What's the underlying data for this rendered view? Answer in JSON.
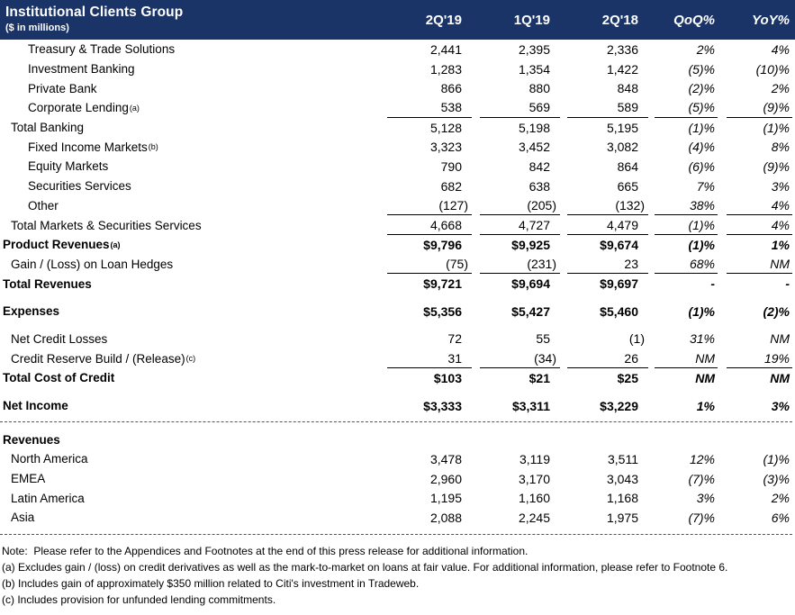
{
  "header": {
    "title": "Institutional Clients Group",
    "subtitle": "($ in millions)",
    "columns": [
      "2Q'19",
      "1Q'19",
      "2Q'18",
      "QoQ%",
      "YoY%"
    ],
    "bg_color": "#1b3467",
    "text_color": "#ffffff"
  },
  "table": {
    "rows": [
      {
        "label": "Treasury & Trade Solutions",
        "indent": 2,
        "values": [
          "2,441",
          "2,395",
          "2,336",
          "2%",
          "4%"
        ]
      },
      {
        "label": "Investment Banking",
        "indent": 2,
        "values": [
          "1,283",
          "1,354",
          "1,422",
          "(5)%",
          "(10)%"
        ]
      },
      {
        "label": "Private Bank",
        "indent": 2,
        "values": [
          "866",
          "880",
          "848",
          "(2)%",
          "2%"
        ]
      },
      {
        "label": "Corporate Lending",
        "sup": "(a)",
        "indent": 2,
        "underline": true,
        "values": [
          "538",
          "569",
          "589",
          "(5)%",
          "(9)%"
        ]
      },
      {
        "label": "Total Banking",
        "indent": 1,
        "values": [
          "5,128",
          "5,198",
          "5,195",
          "(1)%",
          "(1)%"
        ]
      },
      {
        "label": "Fixed Income Markets",
        "sup": "(b)",
        "indent": 2,
        "values": [
          "3,323",
          "3,452",
          "3,082",
          "(4)%",
          "8%"
        ]
      },
      {
        "label": "Equity Markets",
        "indent": 2,
        "values": [
          "790",
          "842",
          "864",
          "(6)%",
          "(9)%"
        ]
      },
      {
        "label": "Securities Services",
        "indent": 2,
        "values": [
          "682",
          "638",
          "665",
          "7%",
          "3%"
        ]
      },
      {
        "label": "Other",
        "indent": 2,
        "underline": true,
        "values": [
          "(127)",
          "(205)",
          "(132)",
          "38%",
          "4%"
        ]
      },
      {
        "label": "Total Markets & Securities Services",
        "indent": 1,
        "underline": true,
        "values": [
          "4,668",
          "4,727",
          "4,479",
          "(1)%",
          "4%"
        ]
      },
      {
        "label": "Product Revenues",
        "sup": "(a)",
        "indent": 0,
        "bold": true,
        "values": [
          "$9,796",
          "$9,925",
          "$9,674",
          "(1)%",
          "1%"
        ]
      },
      {
        "label": "Gain / (Loss) on Loan Hedges",
        "indent": 1,
        "underline": true,
        "values": [
          "(75)",
          "(231)",
          "23",
          "68%",
          "NM"
        ]
      },
      {
        "label": "Total Revenues",
        "indent": 0,
        "bold": true,
        "values": [
          "$9,721",
          "$9,694",
          "$9,697",
          "-",
          "-"
        ]
      },
      {
        "type": "spacer"
      },
      {
        "label": "Expenses",
        "indent": 0,
        "bold": true,
        "values": [
          "$5,356",
          "$5,427",
          "$5,460",
          "(1)%",
          "(2)%"
        ]
      },
      {
        "type": "spacer"
      },
      {
        "label": "Net Credit Losses",
        "indent": 1,
        "values": [
          "72",
          "55",
          "(1)",
          "31%",
          "NM"
        ]
      },
      {
        "label": "Credit Reserve Build / (Release)",
        "sup": "(c)",
        "indent": 1,
        "underline": true,
        "values": [
          "31",
          "(34)",
          "26",
          "NM",
          "19%"
        ]
      },
      {
        "label": "Total Cost of Credit",
        "indent": 0,
        "bold": true,
        "values": [
          "$103",
          "$21",
          "$25",
          "NM",
          "NM"
        ]
      },
      {
        "type": "spacer"
      },
      {
        "label": "Net Income",
        "indent": 0,
        "bold": true,
        "values": [
          "$3,333",
          "$3,311",
          "$3,229",
          "1%",
          "3%"
        ]
      },
      {
        "type": "divider"
      },
      {
        "label": "Revenues",
        "indent": 0,
        "bold": true,
        "values": [
          "",
          "",
          "",
          "",
          ""
        ]
      },
      {
        "label": "North America",
        "indent": 1,
        "values": [
          "3,478",
          "3,119",
          "3,511",
          "12%",
          "(1)%"
        ]
      },
      {
        "label": "EMEA",
        "indent": 1,
        "values": [
          "2,960",
          "3,170",
          "3,043",
          "(7)%",
          "(3)%"
        ]
      },
      {
        "label": "Latin America",
        "indent": 1,
        "values": [
          "1,195",
          "1,160",
          "1,168",
          "3%",
          "2%"
        ]
      },
      {
        "label": "Asia",
        "indent": 1,
        "values": [
          "2,088",
          "2,245",
          "1,975",
          "(7)%",
          "6%"
        ]
      },
      {
        "type": "divider"
      }
    ]
  },
  "footnotes": {
    "note": "Note:  Please refer to the Appendices and Footnotes at the end of this press release for additional information.",
    "items": [
      "(a) Excludes gain / (loss) on credit derivatives as well as the mark-to-market on loans at fair value. For additional information, please refer to Footnote 6.",
      "(b) Includes gain of approximately $350 million related to Citi's investment in Tradeweb.",
      "(c) Includes provision for unfunded lending commitments."
    ]
  }
}
